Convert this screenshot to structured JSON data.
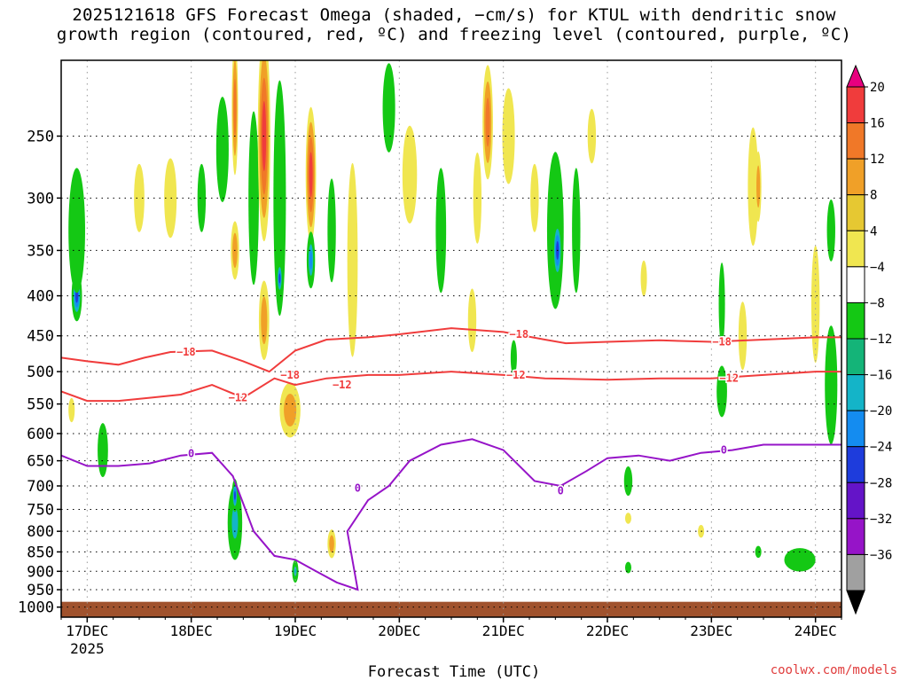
{
  "title_line1": "2025121618 GFS Forecast Omega (shaded, −cm/s) for KTUL with dendritic snow",
  "title_line2": "growth region (contoured, red, ºC) and freezing level (contoured, purple, ºC)",
  "credit": "coolwx.com/models",
  "chart_data": {
    "type": "heatmap",
    "title": "2025121618 GFS Forecast Omega (shaded, −cm/s) for KTUL with dendritic snow growth region (contoured, red, ºC) and freezing level (contoured, purple, ºC)",
    "xlabel": "Forecast Time (UTC)",
    "ylabel": "",
    "y_ticks": [
      250,
      300,
      350,
      400,
      450,
      500,
      550,
      600,
      650,
      700,
      750,
      800,
      850,
      900,
      950,
      1000
    ],
    "y_range_hpa": [
      200,
      1030
    ],
    "x_ticks": [
      "17DEC",
      "18DEC",
      "19DEC",
      "20DEC",
      "21DEC",
      "22DEC",
      "23DEC",
      "24DEC"
    ],
    "x_year_label": "2025",
    "x_range_days": [
      16.75,
      24.25
    ],
    "colorbar": {
      "labels": [
        "20",
        "16",
        "12",
        "8",
        "4",
        "−4",
        "−8",
        "−12",
        "−16",
        "−20",
        "−24",
        "−28",
        "−32",
        "−36"
      ],
      "bins": [
        {
          "color": "#e8007f"
        },
        {
          "color": "#f03c3c"
        },
        {
          "color": "#f07828"
        },
        {
          "color": "#f0a028"
        },
        {
          "color": "#e6c832"
        },
        {
          "color": "#f0e650"
        },
        {
          "color": "#ffffff"
        },
        {
          "color": "#14c814"
        },
        {
          "color": "#14b478"
        },
        {
          "color": "#14b4c8"
        },
        {
          "color": "#148cf0"
        },
        {
          "color": "#1e3cdc"
        },
        {
          "color": "#6414c8"
        },
        {
          "color": "#9614c8"
        },
        {
          "color": "#a0a0a0"
        },
        {
          "color": "#000000"
        }
      ]
    },
    "contour_labels": {
      "dgz_minus18": "−18",
      "dgz_minus12": "−12",
      "freezing": "0"
    },
    "contours": {
      "dgz_minus18": [
        [
          16.75,
          480
        ],
        [
          17.0,
          485
        ],
        [
          17.3,
          490
        ],
        [
          17.55,
          480
        ],
        [
          17.8,
          472
        ],
        [
          18.2,
          470
        ],
        [
          18.5,
          485
        ],
        [
          18.75,
          500
        ],
        [
          19.0,
          470
        ],
        [
          19.3,
          455
        ],
        [
          19.7,
          452
        ],
        [
          20.0,
          448
        ],
        [
          20.5,
          440
        ],
        [
          21.0,
          445
        ],
        [
          21.4,
          455
        ],
        [
          21.6,
          460
        ],
        [
          22.0,
          458
        ],
        [
          22.5,
          456
        ],
        [
          23.0,
          458
        ],
        [
          23.5,
          455
        ],
        [
          24.0,
          452
        ],
        [
          24.25,
          452
        ]
      ],
      "dgz_minus12": [
        [
          16.75,
          530
        ],
        [
          17.0,
          545
        ],
        [
          17.3,
          545
        ],
        [
          17.6,
          540
        ],
        [
          17.9,
          535
        ],
        [
          18.2,
          520
        ],
        [
          18.5,
          540
        ],
        [
          18.8,
          510
        ],
        [
          19.0,
          520
        ],
        [
          19.3,
          510
        ],
        [
          19.7,
          505
        ],
        [
          20.0,
          505
        ],
        [
          20.5,
          500
        ],
        [
          21.0,
          505
        ],
        [
          21.4,
          510
        ],
        [
          22.0,
          512
        ],
        [
          22.5,
          510
        ],
        [
          23.0,
          510
        ],
        [
          23.5,
          505
        ],
        [
          24.0,
          500
        ],
        [
          24.25,
          500
        ]
      ],
      "freezing": [
        [
          16.75,
          640
        ],
        [
          17.0,
          660
        ],
        [
          17.3,
          660
        ],
        [
          17.6,
          655
        ],
        [
          17.9,
          640
        ],
        [
          18.2,
          635
        ],
        [
          18.4,
          680
        ],
        [
          18.6,
          800
        ],
        [
          18.8,
          860
        ],
        [
          19.0,
          870
        ],
        [
          19.2,
          900
        ],
        [
          19.4,
          930
        ],
        [
          19.6,
          950
        ],
        [
          19.5,
          800
        ],
        [
          19.7,
          730
        ],
        [
          19.9,
          700
        ],
        [
          20.1,
          650
        ],
        [
          20.4,
          620
        ],
        [
          20.7,
          610
        ],
        [
          21.0,
          630
        ],
        [
          21.3,
          690
        ],
        [
          21.55,
          700
        ],
        [
          21.8,
          670
        ],
        [
          22.0,
          645
        ],
        [
          22.3,
          640
        ],
        [
          22.6,
          650
        ],
        [
          22.9,
          635
        ],
        [
          23.2,
          630
        ],
        [
          23.5,
          620
        ],
        [
          23.8,
          620
        ],
        [
          24.0,
          620
        ],
        [
          24.25,
          620
        ]
      ]
    },
    "omega_blobs": [
      {
        "t": 16.9,
        "p": 400,
        "dt": 0.05,
        "dp": 60,
        "v": -24
      },
      {
        "t": 16.9,
        "p": 330,
        "dt": 0.08,
        "dp": 120,
        "v": -8
      },
      {
        "t": 16.85,
        "p": 560,
        "dt": 0.03,
        "dp": 40,
        "v": 8
      },
      {
        "t": 17.15,
        "p": 630,
        "dt": 0.05,
        "dp": 100,
        "v": -4
      },
      {
        "t": 17.5,
        "p": 300,
        "dt": 0.05,
        "dp": 60,
        "v": 6
      },
      {
        "t": 17.8,
        "p": 300,
        "dt": 0.06,
        "dp": 70,
        "v": 6
      },
      {
        "t": 18.1,
        "p": 300,
        "dt": 0.04,
        "dp": 60,
        "v": -8
      },
      {
        "t": 18.3,
        "p": 260,
        "dt": 0.06,
        "dp": 80,
        "v": -10
      },
      {
        "t": 18.42,
        "p": 780,
        "dt": 0.07,
        "dp": 170,
        "v": -14
      },
      {
        "t": 18.42,
        "p": 720,
        "dt": 0.03,
        "dp": 70,
        "v": -24
      },
      {
        "t": 18.42,
        "p": 230,
        "dt": 0.03,
        "dp": 90,
        "v": 16
      },
      {
        "t": 18.42,
        "p": 350,
        "dt": 0.04,
        "dp": 60,
        "v": 12
      },
      {
        "t": 18.6,
        "p": 300,
        "dt": 0.05,
        "dp": 150,
        "v": -8
      },
      {
        "t": 18.7,
        "p": 250,
        "dt": 0.06,
        "dp": 150,
        "v": 20
      },
      {
        "t": 18.7,
        "p": 430,
        "dt": 0.05,
        "dp": 100,
        "v": 12
      },
      {
        "t": 18.85,
        "p": 300,
        "dt": 0.06,
        "dp": 200,
        "v": -8
      },
      {
        "t": 18.85,
        "p": 380,
        "dt": 0.03,
        "dp": 40,
        "v": -24
      },
      {
        "t": 18.95,
        "p": 560,
        "dt": 0.1,
        "dp": 90,
        "v": 10
      },
      {
        "t": 19.0,
        "p": 900,
        "dt": 0.03,
        "dp": 60,
        "v": -14
      },
      {
        "t": 19.15,
        "p": 280,
        "dt": 0.05,
        "dp": 110,
        "v": 18
      },
      {
        "t": 19.15,
        "p": 360,
        "dt": 0.04,
        "dp": 60,
        "v": -18
      },
      {
        "t": 19.35,
        "p": 330,
        "dt": 0.04,
        "dp": 100,
        "v": -8
      },
      {
        "t": 19.35,
        "p": 830,
        "dt": 0.04,
        "dp": 70,
        "v": 10
      },
      {
        "t": 19.55,
        "p": 360,
        "dt": 0.05,
        "dp": 200,
        "v": 6
      },
      {
        "t": 19.9,
        "p": 230,
        "dt": 0.06,
        "dp": 60,
        "v": -8
      },
      {
        "t": 20.1,
        "p": 280,
        "dt": 0.07,
        "dp": 80,
        "v": 6
      },
      {
        "t": 20.4,
        "p": 330,
        "dt": 0.05,
        "dp": 120,
        "v": -8
      },
      {
        "t": 20.7,
        "p": 430,
        "dt": 0.04,
        "dp": 80,
        "v": 8
      },
      {
        "t": 20.75,
        "p": 300,
        "dt": 0.04,
        "dp": 80,
        "v": 6
      },
      {
        "t": 20.85,
        "p": 240,
        "dt": 0.05,
        "dp": 80,
        "v": 14
      },
      {
        "t": 21.05,
        "p": 250,
        "dt": 0.06,
        "dp": 70,
        "v": 8
      },
      {
        "t": 21.1,
        "p": 480,
        "dt": 0.03,
        "dp": 50,
        "v": -8
      },
      {
        "t": 21.3,
        "p": 300,
        "dt": 0.04,
        "dp": 60,
        "v": 8
      },
      {
        "t": 21.5,
        "p": 330,
        "dt": 0.08,
        "dp": 150,
        "v": -12
      },
      {
        "t": 21.52,
        "p": 350,
        "dt": 0.05,
        "dp": 70,
        "v": -24
      },
      {
        "t": 21.7,
        "p": 330,
        "dt": 0.04,
        "dp": 120,
        "v": -8
      },
      {
        "t": 21.85,
        "p": 250,
        "dt": 0.04,
        "dp": 40,
        "v": 6
      },
      {
        "t": 22.2,
        "p": 690,
        "dt": 0.04,
        "dp": 60,
        "v": -8
      },
      {
        "t": 22.2,
        "p": 890,
        "dt": 0.03,
        "dp": 30,
        "v": -8
      },
      {
        "t": 22.2,
        "p": 770,
        "dt": 0.03,
        "dp": 25,
        "v": 6
      },
      {
        "t": 22.35,
        "p": 380,
        "dt": 0.03,
        "dp": 40,
        "v": 6
      },
      {
        "t": 22.9,
        "p": 800,
        "dt": 0.03,
        "dp": 30,
        "v": 8
      },
      {
        "t": 23.1,
        "p": 410,
        "dt": 0.03,
        "dp": 100,
        "v": -8
      },
      {
        "t": 23.1,
        "p": 530,
        "dt": 0.05,
        "dp": 80,
        "v": -10
      },
      {
        "t": 23.3,
        "p": 450,
        "dt": 0.04,
        "dp": 90,
        "v": 6
      },
      {
        "t": 23.4,
        "p": 290,
        "dt": 0.05,
        "dp": 100,
        "v": 8
      },
      {
        "t": 23.45,
        "p": 290,
        "dt": 0.03,
        "dp": 60,
        "v": 10
      },
      {
        "t": 23.45,
        "p": 850,
        "dt": 0.03,
        "dp": 30,
        "v": -8
      },
      {
        "t": 23.85,
        "p": 870,
        "dt": 0.15,
        "dp": 60,
        "v": -8
      },
      {
        "t": 24.0,
        "p": 410,
        "dt": 0.04,
        "dp": 140,
        "v": 6
      },
      {
        "t": 24.15,
        "p": 520,
        "dt": 0.06,
        "dp": 180,
        "v": -8
      },
      {
        "t": 24.15,
        "p": 330,
        "dt": 0.04,
        "dp": 60,
        "v": -8
      }
    ]
  }
}
